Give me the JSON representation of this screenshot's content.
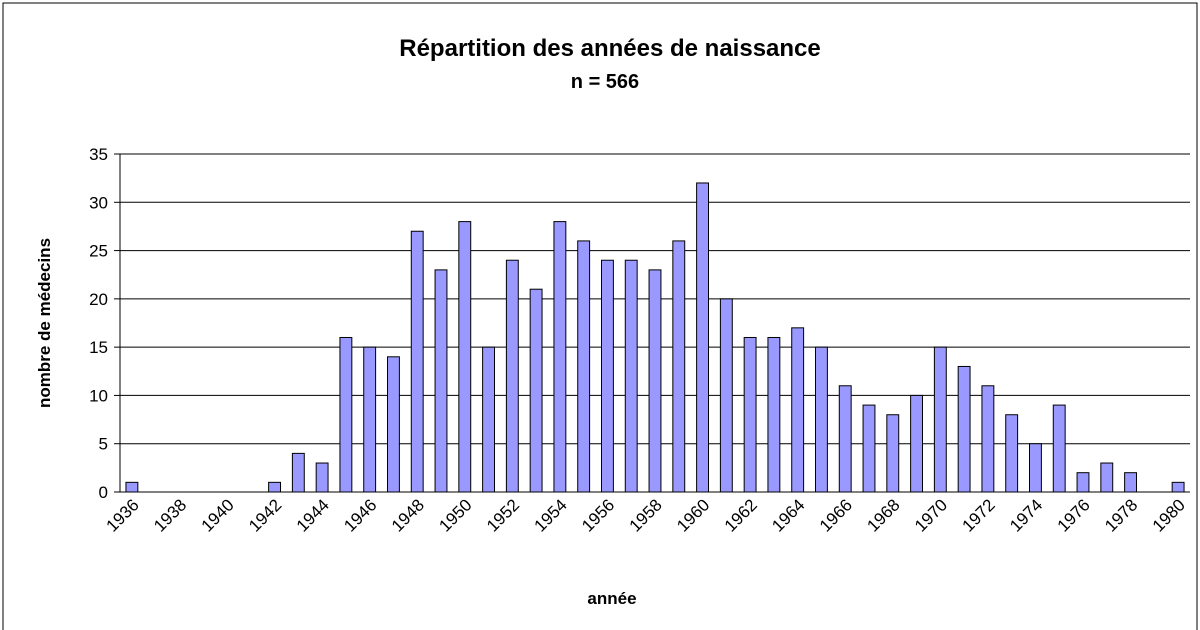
{
  "chart_data": {
    "type": "bar",
    "title": "Répartition des années de naissance",
    "subtitle": "n = 566",
    "x_label": "année",
    "y_label": "nombre de médecins",
    "categories": [
      "1936",
      null,
      "1938",
      null,
      "1940",
      null,
      "1942",
      null,
      "1944",
      null,
      "1946",
      null,
      "1948",
      null,
      "1950",
      null,
      "1952",
      null,
      "1954",
      null,
      "1956",
      null,
      "1958",
      null,
      "1960",
      null,
      "1962",
      null,
      "1964",
      null,
      "1966",
      null,
      "1968",
      null,
      "1970",
      null,
      "1972",
      null,
      "1974",
      null,
      "1976",
      null,
      "1978",
      null,
      "1980"
    ],
    "values": [
      1,
      0,
      0,
      0,
      0,
      0,
      1,
      4,
      3,
      16,
      15,
      14,
      27,
      23,
      28,
      15,
      24,
      21,
      28,
      26,
      24,
      24,
      23,
      26,
      32,
      20,
      16,
      16,
      17,
      15,
      11,
      9,
      8,
      10,
      15,
      13,
      11,
      8,
      5,
      9,
      2,
      3,
      2,
      0,
      1
    ],
    "color": "#9999ff",
    "ylim": [
      0,
      35
    ],
    "yticks": [
      0,
      5,
      10,
      15,
      20,
      25,
      30,
      35
    ],
    "grid": true
  }
}
